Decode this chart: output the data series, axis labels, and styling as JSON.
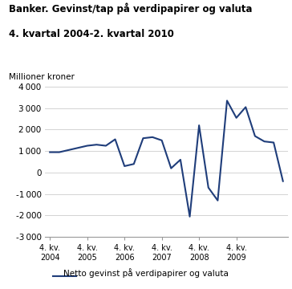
{
  "title_line1": "Banker. Gevinst/tap på verdipapirer og valuta",
  "title_line2": "4. kvartal 2004-2. kvartal 2010",
  "ylabel": "Millioner kroner",
  "line_color": "#1f3d7a",
  "line_width": 1.5,
  "background_color": "#ffffff",
  "grid_color": "#cccccc",
  "ylim": [
    -3000,
    4000
  ],
  "yticks": [
    -3000,
    -2000,
    -1000,
    0,
    1000,
    2000,
    3000,
    4000
  ],
  "legend_label": "Netto gevinst på verdipapirer og valuta",
  "xtick_labels": [
    "4. kv.\n2004",
    "4. kv.\n2005",
    "4. kv.\n2006",
    "4. kv.\n2007",
    "4. kv.\n2008",
    "4. kv.\n2009"
  ],
  "xtick_positions": [
    0,
    4,
    8,
    12,
    16,
    20
  ],
  "values": [
    950,
    950,
    1050,
    1150,
    1250,
    1300,
    1250,
    1550,
    300,
    400,
    1600,
    1650,
    1500,
    200,
    600,
    -2050,
    2200,
    -700,
    -1300,
    3350,
    2550,
    3050,
    1700,
    1450,
    1400,
    -400
  ]
}
